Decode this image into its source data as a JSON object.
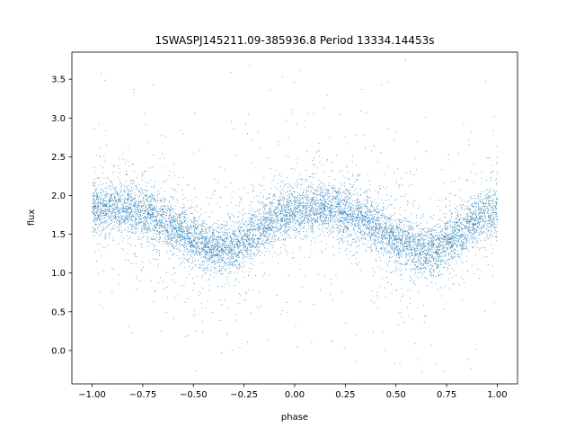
{
  "chart_data": {
    "type": "scatter",
    "title": "1SWASPJ145211.09-385936.8 Period 13334.14453s",
    "xlabel": "phase",
    "ylabel": "flux",
    "xlim": [
      -1.1,
      1.1
    ],
    "ylim": [
      -0.43,
      3.85
    ],
    "xticks": [
      -1.0,
      -0.75,
      -0.5,
      -0.25,
      0.0,
      0.25,
      0.5,
      0.75,
      1.0
    ],
    "xtick_labels": [
      "−1.00",
      "−0.75",
      "−0.50",
      "−0.25",
      "0.00",
      "0.25",
      "0.50",
      "0.75",
      "1.00"
    ],
    "yticks": [
      0.0,
      0.5,
      1.0,
      1.5,
      2.0,
      2.5,
      3.0,
      3.5
    ],
    "ytick_labels": [
      "0.0",
      "0.5",
      "1.0",
      "1.5",
      "2.0",
      "2.5",
      "3.0",
      "3.5"
    ],
    "grid": false,
    "marker_color": "#1f77b4",
    "series": [
      {
        "x": [
          -1.0,
          -0.9,
          -0.8,
          -0.7,
          -0.6,
          -0.5,
          -0.4,
          -0.3,
          -0.2,
          -0.1,
          0.0,
          0.1,
          0.2,
          0.3,
          0.4,
          0.5,
          0.6,
          0.7,
          0.8,
          0.9,
          1.0
        ],
        "y": [
          1.82,
          1.84,
          1.83,
          1.74,
          1.6,
          1.42,
          1.3,
          1.32,
          1.5,
          1.7,
          1.8,
          1.84,
          1.83,
          1.74,
          1.6,
          1.42,
          1.3,
          1.32,
          1.5,
          1.7,
          1.8
        ]
      }
    ]
  }
}
